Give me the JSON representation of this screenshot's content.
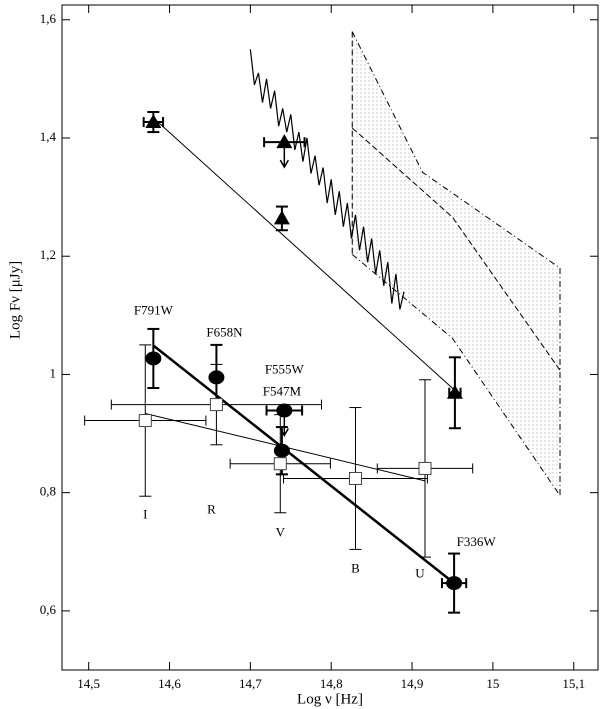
{
  "chart_data": {
    "type": "scatter",
    "xlabel": "Log ν [Hz]",
    "ylabel": "Log Fν [μJy]",
    "xlim": [
      14.467,
      15.13
    ],
    "ylim": [
      0.5,
      1.625
    ],
    "xticks": [
      {
        "value": 14.5,
        "label": "14,5"
      },
      {
        "value": 14.6,
        "label": "14,6"
      },
      {
        "value": 14.7,
        "label": "14,7"
      },
      {
        "value": 14.8,
        "label": "14,8"
      },
      {
        "value": 14.9,
        "label": "14,9"
      },
      15,
      {
        "value": 15.1,
        "label": "15,1"
      }
    ],
    "yticks": [
      {
        "value": 0.6,
        "label": "0,6"
      },
      {
        "value": 0.8,
        "label": "0,8"
      },
      1,
      {
        "value": 1.2,
        "label": "1,2"
      },
      {
        "value": 1.4,
        "label": "1,4"
      },
      {
        "value": 1.6,
        "label": "1,6"
      }
    ],
    "color": "#000000",
    "series": [
      {
        "marker": "triangle",
        "x": [
          14.58,
          14.742,
          14.739,
          14.953
        ],
        "values": [
          1.427,
          1.393,
          1.264,
          0.969
        ],
        "yerr": [
          0.017,
          null,
          0.02,
          0.06
        ],
        "xerr": [
          0.012,
          0.025,
          null,
          0.007
        ],
        "upper_limit": [
          false,
          true,
          false,
          false
        ]
      },
      {
        "marker": "circle",
        "x": [
          14.58,
          14.658,
          14.742,
          14.739,
          14.952
        ],
        "values": [
          1.027,
          0.995,
          0.939,
          0.871,
          0.647
        ],
        "yerr": [
          0.05,
          0.055,
          null,
          0.04,
          0.05
        ],
        "xerr": [
          null,
          null,
          0.022,
          null,
          0.015
        ],
        "upper_limit": [
          false,
          false,
          true,
          false,
          false
        ],
        "labels": [
          "F791W",
          "F658N",
          "F555W",
          "F547M",
          "F336W"
        ]
      },
      {
        "marker": "square",
        "x": [
          14.57,
          14.658,
          14.737,
          14.83,
          14.916
        ],
        "values": [
          0.922,
          0.949,
          0.849,
          0.824,
          0.841
        ],
        "yerr": [
          0.128,
          0.068,
          0.083,
          0.12,
          0.15
        ],
        "xerr": [
          0.075,
          0.13,
          0.062,
          0.089,
          0.059
        ],
        "upper_limit": [
          false,
          false,
          false,
          false,
          false
        ],
        "labels": [
          "I",
          "R",
          "V",
          "B",
          "U"
        ]
      }
    ],
    "fits": [
      {
        "x": [
          14.58,
          14.952
        ],
        "values": [
          1.049,
          0.647
        ],
        "width": 2.5
      },
      {
        "x": [
          14.58,
          14.953
        ],
        "values": [
          1.434,
          0.973
        ],
        "width": 1
      },
      {
        "x": [
          14.57,
          14.916
        ],
        "values": [
          0.934,
          0.82
        ],
        "width": 1
      }
    ],
    "spectrum": {
      "x": [
        14.7,
        14.705,
        14.71,
        14.715,
        14.72,
        14.725,
        14.73,
        14.735,
        14.74,
        14.745,
        14.75,
        14.755,
        14.76,
        14.765,
        14.77,
        14.775,
        14.78,
        14.785,
        14.79,
        14.795,
        14.8,
        14.805,
        14.81,
        14.815,
        14.82,
        14.825,
        14.83,
        14.835,
        14.84,
        14.845,
        14.85,
        14.855,
        14.86,
        14.865,
        14.87,
        14.875,
        14.88,
        14.885,
        14.89
      ],
      "values": [
        1.55,
        1.49,
        1.51,
        1.46,
        1.5,
        1.45,
        1.48,
        1.42,
        1.45,
        1.41,
        1.44,
        1.38,
        1.41,
        1.36,
        1.4,
        1.34,
        1.37,
        1.32,
        1.35,
        1.29,
        1.33,
        1.27,
        1.31,
        1.25,
        1.29,
        1.23,
        1.27,
        1.21,
        1.25,
        1.19,
        1.23,
        1.17,
        1.21,
        1.15,
        1.19,
        1.12,
        1.17,
        1.11,
        1.14
      ]
    },
    "region": {
      "upper": {
        "x": [
          14.826,
          14.913,
          15.083
        ],
        "values": [
          1.58,
          1.342,
          1.18
        ]
      },
      "middle": {
        "x": [
          14.826,
          14.95,
          15.083
        ],
        "values": [
          1.417,
          1.266,
          1.007
        ]
      },
      "lower": {
        "x": [
          14.826,
          14.95,
          15.083
        ],
        "values": [
          1.203,
          1.061,
          0.795
        ]
      }
    }
  }
}
